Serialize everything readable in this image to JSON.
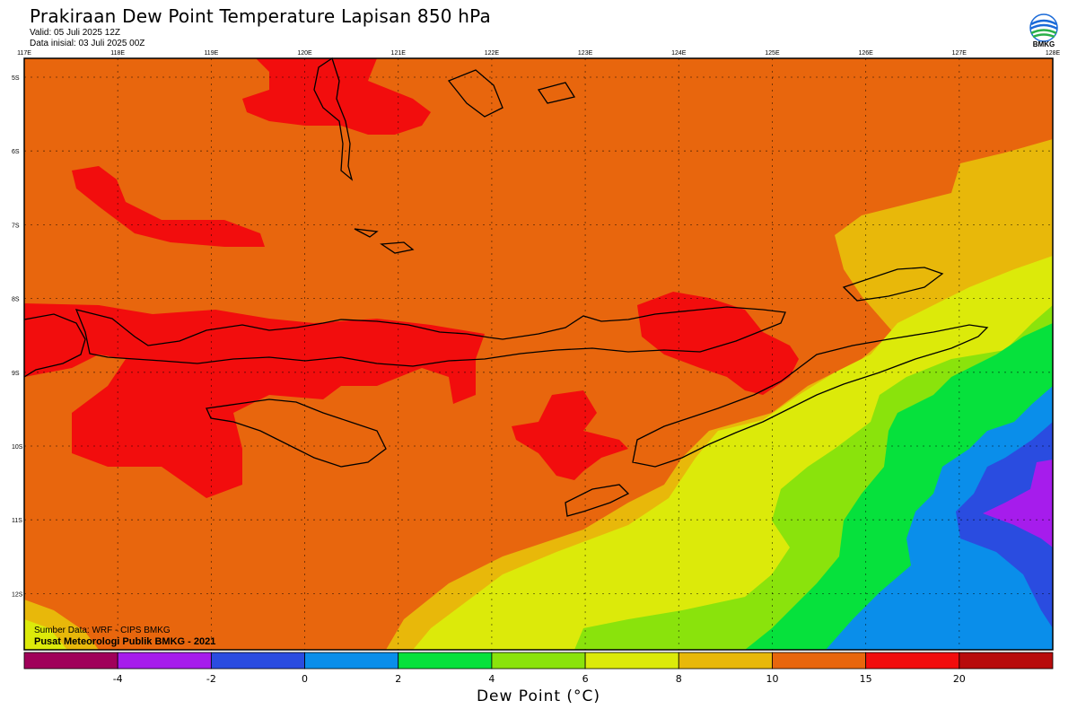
{
  "header": {
    "title": "Prakiraan Dew Point Temperature Lapisan 850 hPa",
    "valid": "Valid: 05 Juli 2025 12Z",
    "init": "Data inisial: 03 Juli 2025 00Z"
  },
  "logo": {
    "icon": "bmkg-logo-icon",
    "text": "BMKG"
  },
  "map": {
    "lon_labels": [
      "117E",
      "118E",
      "119E",
      "120E",
      "121E",
      "122E",
      "123E",
      "124E",
      "125E",
      "126E",
      "127E",
      "128E"
    ],
    "lat_labels": [
      "5S",
      "6S",
      "7S",
      "8S",
      "9S",
      "10S",
      "11S",
      "12S"
    ],
    "lon_range": [
      117,
      128
    ],
    "lat_range": [
      -4.8,
      -12.8
    ],
    "grid": true,
    "background_color": "#E8660D"
  },
  "credits": {
    "source": "Sumber Data: WRF - CIPS BMKG",
    "org": "Pusat Meteorologi Publik BMKG - 2021"
  },
  "colorbar": {
    "title": "Dew Point (°C)",
    "tick_labels": [
      "-4",
      "-2",
      "0",
      "2",
      "4",
      "6",
      "8",
      "10",
      "15",
      "20"
    ],
    "colors": [
      "#A0005A",
      "#A61CEC",
      "#2A4CE0",
      "#0A8EEA",
      "#06E13C",
      "#8AE30C",
      "#DCEA0A",
      "#E8B80A",
      "#E8660D",
      "#F20D0D",
      "#B80C0C"
    ]
  }
}
